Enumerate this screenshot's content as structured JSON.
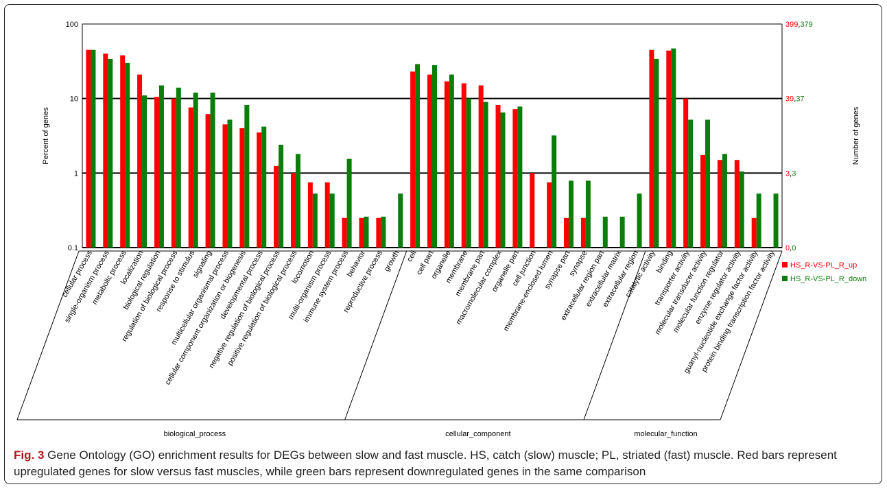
{
  "chart_data": {
    "type": "bar",
    "y_scale": "log",
    "ylim": [
      0.1,
      100
    ],
    "y_ticks": [
      "100",
      "10",
      "1",
      "0.1"
    ],
    "ylabel_left": "Percent of genes",
    "ylabel_right": "Number of genes",
    "right_ticks": [
      {
        "up": "399",
        "down": "379"
      },
      {
        "up": "39",
        "down": "37"
      },
      {
        "up": "3",
        "down": "3"
      },
      {
        "up": "0",
        "down": "0"
      }
    ],
    "legend": {
      "position": "right",
      "up": "HS_R-VS-PL_R_up",
      "down": "HS_R-VS-PL_R_down"
    },
    "colors": {
      "up": "#ff0000",
      "down": "#0a7d0a"
    },
    "categories": [
      "cellular process",
      "single-organism process",
      "metabolic process",
      "localization",
      "biological regulation",
      "regulation of biological process",
      "response to stimulus",
      "signaling",
      "multicellular organismal process",
      "cellular component organization or biogenesis",
      "developmental process",
      "negative regulation of biological process",
      "positive regulation of biological process",
      "locomotion",
      "multi-organism process",
      "immune system process",
      "behavior",
      "reproductive process",
      "growth",
      "cell",
      "cell part",
      "organelle",
      "membrane",
      "membrane part",
      "macromolecular complex",
      "organelle part",
      "cell junction",
      "membrane-enclosed lumen",
      "synapse part",
      "synapse",
      "extracellular region part",
      "extracellular matrix",
      "extracellular region",
      "catalytic activity",
      "binding",
      "transporter activity",
      "molecular transducer activity",
      "molecular function regulator",
      "enzyme regulator activity",
      "guanyl-nucleotide exchange factor activity",
      "protein binding transcription factor activity"
    ],
    "series": [
      {
        "name": "HS_R-VS-PL_R_up",
        "values": [
          45,
          40,
          38,
          21,
          10.5,
          10,
          7.6,
          6.2,
          4.5,
          4,
          3.5,
          1.25,
          1,
          0.75,
          0.75,
          0.25,
          0.25,
          0.25,
          null,
          23,
          21,
          17,
          16,
          15,
          8.2,
          7.2,
          1,
          0.75,
          0.25,
          0.25,
          null,
          null,
          null,
          45,
          44,
          10,
          1.75,
          1.5,
          1.5,
          0.25,
          null
        ]
      },
      {
        "name": "HS_R-VS-PL_R_down",
        "values": [
          45,
          34,
          30,
          11,
          15,
          14,
          12,
          12,
          5.2,
          8.2,
          4.2,
          2.4,
          1.8,
          0.53,
          0.53,
          1.55,
          0.26,
          0.26,
          0.53,
          29,
          28,
          21,
          10,
          9,
          6.5,
          7.8,
          null,
          3.2,
          0.79,
          0.79,
          0.26,
          0.26,
          0.53,
          34,
          47,
          5.2,
          5.2,
          1.8,
          1.05,
          0.53,
          0.53
        ]
      }
    ],
    "groups": [
      {
        "label": "biological_process",
        "start": 0,
        "end": 18
      },
      {
        "label": "cellular_component",
        "start": 19,
        "end": 32
      },
      {
        "label": "molecular_function",
        "start": 33,
        "end": 40
      }
    ]
  },
  "caption": {
    "lead": "Fig. 3",
    "text": " Gene Ontology (GO) enrichment results for DEGs between slow and fast muscle. HS, catch (slow) muscle; PL, striated (fast) muscle. Red bars represent upregulated genes for slow versus fast muscles, while green bars represent downregulated genes in the same comparison"
  }
}
